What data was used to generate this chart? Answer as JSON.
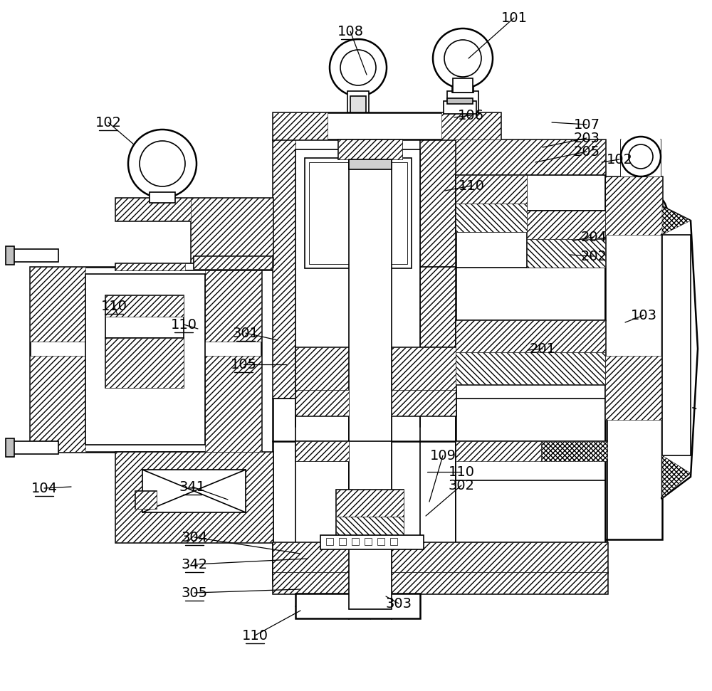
{
  "bg_color": "#ffffff",
  "figsize": [
    10.0,
    9.71
  ],
  "dpi": 100,
  "labels_underlined": [
    [
      "108",
      492,
      44
    ],
    [
      "102",
      152,
      172
    ],
    [
      "110",
      160,
      430
    ],
    [
      "110",
      258,
      456
    ],
    [
      "301",
      345,
      468
    ],
    [
      "105",
      342,
      512
    ],
    [
      "104",
      62,
      686
    ],
    [
      "341",
      270,
      684
    ],
    [
      "304",
      273,
      755
    ],
    [
      "342",
      273,
      793
    ],
    [
      "305",
      273,
      833
    ],
    [
      "110",
      358,
      893
    ]
  ],
  "labels_plain": [
    [
      "101",
      722,
      25
    ],
    [
      "106",
      661,
      162
    ],
    [
      "107",
      824,
      175
    ],
    [
      "203",
      824,
      194
    ],
    [
      "205",
      824,
      213
    ],
    [
      "102",
      870,
      224
    ],
    [
      "110",
      662,
      261
    ],
    [
      "204",
      834,
      333
    ],
    [
      "202",
      834,
      360
    ],
    [
      "103",
      904,
      443
    ],
    [
      "201",
      762,
      490
    ],
    [
      "109",
      622,
      640
    ],
    [
      "110",
      648,
      663
    ],
    [
      "302",
      648,
      682
    ],
    [
      "303",
      560,
      848
    ]
  ],
  "leader_lines": [
    [
      722,
      25,
      658,
      82
    ],
    [
      661,
      162,
      638,
      165
    ],
    [
      824,
      175,
      775,
      172
    ],
    [
      824,
      194,
      762,
      207
    ],
    [
      824,
      213,
      752,
      228
    ],
    [
      870,
      224,
      845,
      228
    ],
    [
      662,
      261,
      625,
      268
    ],
    [
      834,
      333,
      805,
      338
    ],
    [
      834,
      360,
      800,
      358
    ],
    [
      904,
      443,
      878,
      453
    ],
    [
      762,
      490,
      742,
      492
    ],
    [
      622,
      640,
      603,
      705
    ],
    [
      648,
      663,
      600,
      663
    ],
    [
      648,
      682,
      598,
      725
    ],
    [
      560,
      848,
      542,
      838
    ],
    [
      492,
      44,
      515,
      105
    ],
    [
      152,
      172,
      188,
      203
    ],
    [
      160,
      430,
      165,
      442
    ],
    [
      258,
      456,
      278,
      462
    ],
    [
      345,
      468,
      390,
      478
    ],
    [
      342,
      512,
      402,
      512
    ],
    [
      62,
      686,
      100,
      684
    ],
    [
      270,
      684,
      320,
      702
    ],
    [
      273,
      755,
      422,
      778
    ],
    [
      273,
      793,
      432,
      785
    ],
    [
      273,
      833,
      422,
      828
    ],
    [
      358,
      893,
      422,
      858
    ]
  ]
}
